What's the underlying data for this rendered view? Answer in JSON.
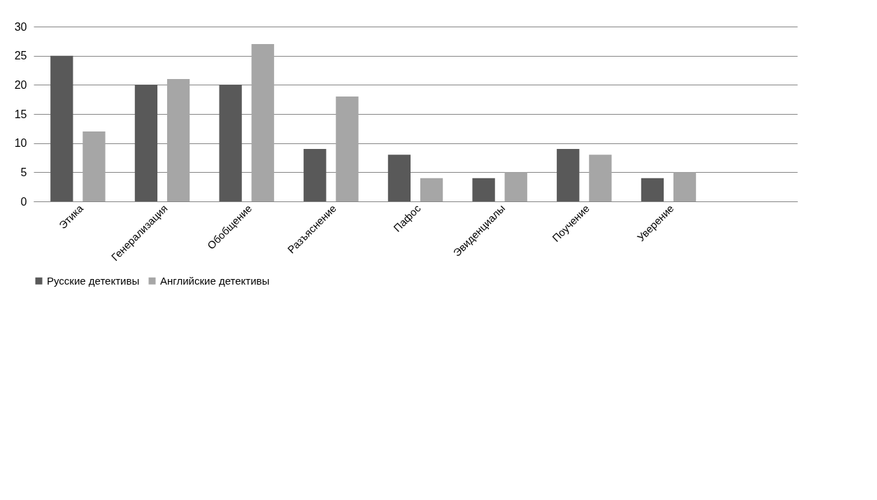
{
  "chart_data": {
    "type": "bar",
    "categories": [
      "Этика",
      "Генерализация",
      "Обобщение",
      "Разъяснение",
      "Пафос",
      "Эвиденциалы",
      "Поучение",
      "Уверение",
      null
    ],
    "series": [
      {
        "name": "Русские детективы",
        "color": "#595959",
        "values": [
          25,
          20,
          20,
          9,
          8,
          4,
          9,
          4,
          null
        ]
      },
      {
        "name": "Английские детективы",
        "color": "#a6a6a6",
        "values": [
          12,
          21,
          27,
          18,
          4,
          5,
          8,
          5,
          null
        ]
      }
    ],
    "ylim": [
      0,
      30
    ],
    "yticks": [
      0,
      5,
      10,
      15,
      20,
      25,
      30
    ],
    "grid": "y",
    "legend": "bottom"
  }
}
